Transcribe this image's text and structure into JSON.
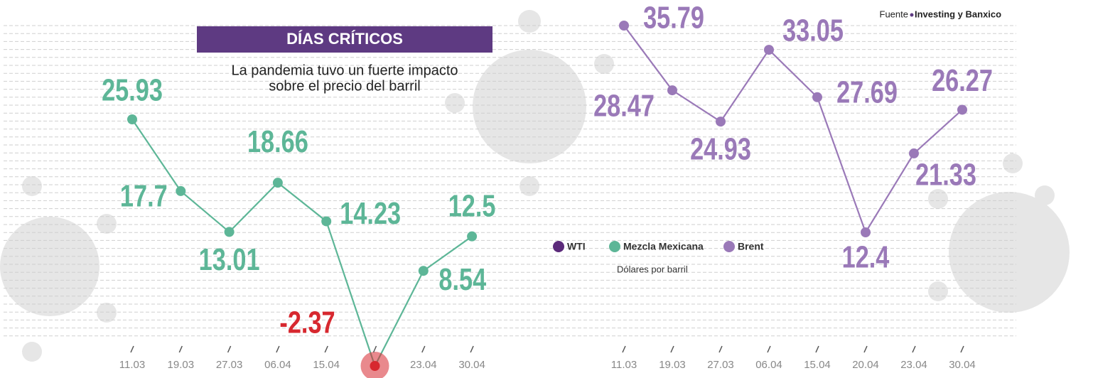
{
  "header": {
    "title": "DÍAS CRÍTICOS",
    "subtitle": [
      "La pandemia tuvo un fuerte impacto",
      "sobre el precio del barril"
    ],
    "source_label": "Fuente",
    "source": "Investing y Banxico"
  },
  "legend": {
    "items": [
      {
        "name": "WTI",
        "color": "#5b2a7a"
      }
    ],
    "note": "Dólares por barril"
  },
  "chart_data": [
    {
      "type": "line",
      "categories": [
        "11.03",
        "19.03",
        "27.03",
        "06.04",
        "15.04",
        null,
        "23.04",
        "30.04"
      ],
      "series": [
        {
          "name": "Mezcla Mexicana",
          "color": "#5db697",
          "values": [
            25.93,
            17.7,
            13.01,
            18.66,
            14.23,
            -2.37,
            8.54,
            12.5
          ]
        }
      ],
      "negative_color": "#d7282f"
    },
    {
      "type": "line",
      "categories": [
        "11.03",
        "19.03",
        "27.03",
        "06.04",
        "15.04",
        "20.04",
        "23.04",
        "30.04"
      ],
      "series": [
        {
          "name": "Brent",
          "color": "#9a79b8",
          "values": [
            35.79,
            28.47,
            24.93,
            33.05,
            27.69,
            12.4,
            21.33,
            26.27
          ]
        }
      ]
    }
  ]
}
